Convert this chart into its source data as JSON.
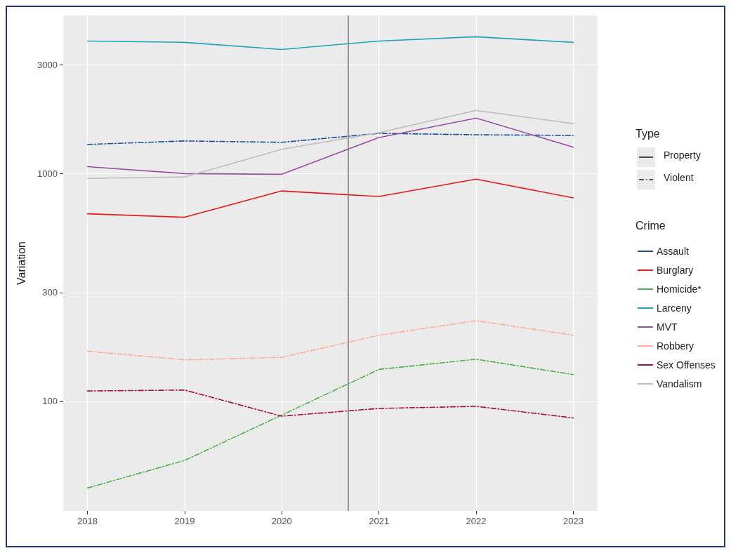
{
  "chart_data": {
    "type": "line",
    "ylabel": "Variation",
    "legend_title": "Crime",
    "annotations": [
      "Type",
      "Property",
      "Violent"
    ],
    "x": [
      2018,
      2019,
      2020,
      2021,
      2022,
      2023
    ],
    "xlim": [
      2017.75,
      2023.25
    ],
    "xticks": [
      2018,
      2019,
      2020,
      2021,
      2022,
      2023
    ],
    "log": "y",
    "ylim": [
      33,
      4950
    ],
    "yticks": [
      100,
      300,
      1000,
      3000
    ],
    "grid": true,
    "legend": "right",
    "marker": "none",
    "ref_lines": [
      {
        "axis": "x",
        "value": 2020.68,
        "color": "#7f7f7f",
        "line_style": "solid"
      }
    ],
    "series": [
      {
        "name": "Assault",
        "color": "#1b4f9c",
        "line_style": "dashed",
        "values": [
          1343,
          1391,
          1372,
          1502,
          1481,
          1471
        ]
      },
      {
        "name": "Burglary",
        "color": "#e41a1c",
        "line_style": "solid",
        "values": [
          666,
          643,
          839,
          793,
          945,
          782
        ]
      },
      {
        "name": "Homicide*",
        "color": "#4daf4a",
        "line_style": "dashed",
        "values": [
          41.6,
          55,
          87,
          138,
          153,
          131
        ]
      },
      {
        "name": "Larceny",
        "color": "#1fa3b5",
        "line_style": "solid",
        "values": [
          3820,
          3770,
          3510,
          3820,
          3990,
          3770
        ]
      },
      {
        "name": "MVT",
        "color": "#984ea3",
        "line_style": "solid",
        "values": [
          1073,
          1000,
          993,
          1440,
          1753,
          1306
        ]
      },
      {
        "name": "Robbery",
        "color": "#fcae91",
        "line_style": "dashed",
        "values": [
          166,
          152,
          156,
          195,
          226,
          195
        ]
      },
      {
        "name": "Sex Offenses",
        "color": "#a50f38",
        "line_style": "dashed",
        "values": [
          111,
          112,
          86,
          93,
          95,
          84.5
        ]
      },
      {
        "name": "Vandalism",
        "color": "#bdbdbd",
        "line_style": "solid",
        "values": [
          952,
          966,
          1278,
          1513,
          1894,
          1658
        ]
      }
    ]
  }
}
